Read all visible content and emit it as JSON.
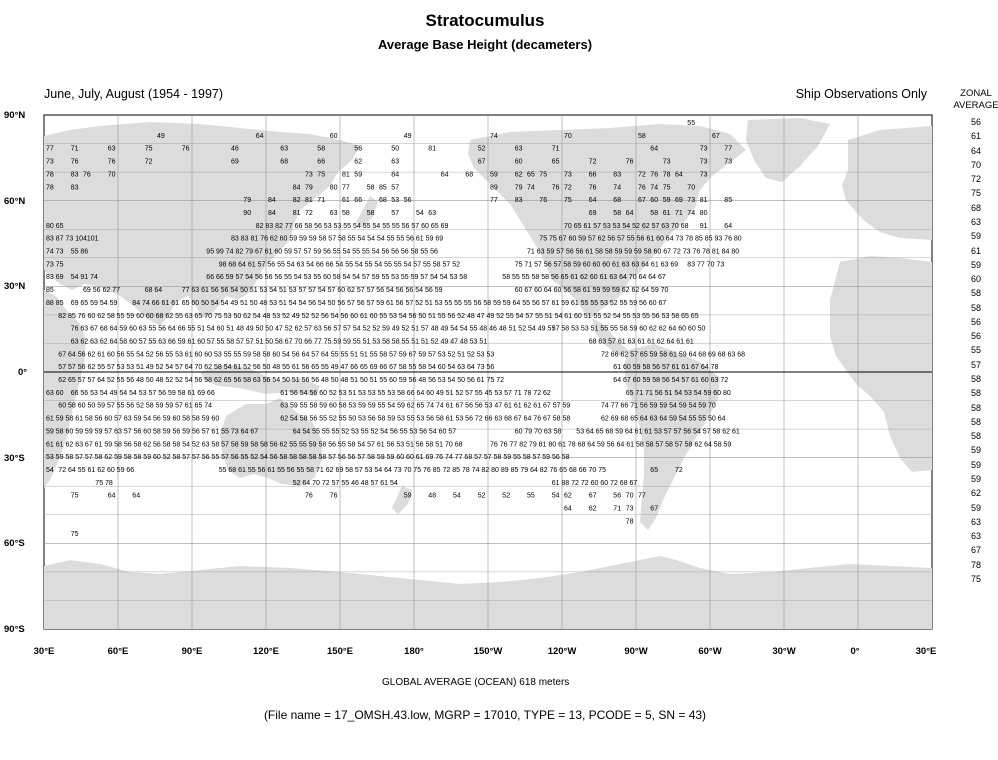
{
  "title": "Stratocumulus",
  "subtitle": "Average Base Height (decameters)",
  "period": "June, July, August (1954 - 1997)",
  "source_note": "Ship Observations Only",
  "zonal_header": "ZONAL AVERAGE",
  "zonal_values": [
    "56",
    "61",
    "64",
    "70",
    "72",
    "75",
    "68",
    "63",
    "59",
    "61",
    "59",
    "60",
    "58",
    "58",
    "56",
    "56",
    "55",
    "57",
    "58",
    "58",
    "58",
    "58",
    "58",
    "59",
    "59",
    "59",
    "62",
    "59",
    "63",
    "63",
    "67",
    "78",
    "75"
  ],
  "lat_labels": [
    "90°N",
    "60°N",
    "30°N",
    "0°",
    "30°S",
    "60°S",
    "90°S"
  ],
  "lon_labels": [
    "30°E",
    "60°E",
    "90°E",
    "120°E",
    "150°E",
    "180°",
    "150°W",
    "120°W",
    "90°W",
    "60°W",
    "30°W",
    "0°",
    "30°E"
  ],
  "global_average": "GLOBAL AVERAGE (OCEAN)   618 meters",
  "file_info": "(File name = 17_OMSH.43.low, MGRP = 17010, TYPE = 13, PCODE = 5, SN = 43)",
  "colors": {
    "land": "#dcdcdc",
    "grid": "#999999",
    "ocean": "#ffffff"
  },
  "grid_values": [
    {
      "row": 0,
      "col": 52,
      "v": "55"
    },
    {
      "row": 1,
      "col": 9,
      "v": "49"
    },
    {
      "row": 1,
      "col": 17,
      "v": "64"
    },
    {
      "row": 1,
      "col": 23,
      "v": "60"
    },
    {
      "row": 1,
      "col": 29,
      "v": "49"
    },
    {
      "row": 1,
      "col": 36,
      "v": "74"
    },
    {
      "row": 1,
      "col": 42,
      "v": "70"
    },
    {
      "row": 1,
      "col": 48,
      "v": "58"
    },
    {
      "row": 1,
      "col": 54,
      "v": "67"
    },
    {
      "row": 2,
      "col": 0,
      "v": "77"
    },
    {
      "row": 2,
      "col": 2,
      "v": "71"
    },
    {
      "row": 2,
      "col": 5,
      "v": "63"
    },
    {
      "row": 2,
      "col": 8,
      "v": "75"
    },
    {
      "row": 2,
      "col": 11,
      "v": "76"
    },
    {
      "row": 2,
      "col": 15,
      "v": "46"
    },
    {
      "row": 2,
      "col": 19,
      "v": "63"
    },
    {
      "row": 2,
      "col": 22,
      "v": "58"
    },
    {
      "row": 2,
      "col": 25,
      "v": "56"
    },
    {
      "row": 2,
      "col": 28,
      "v": "50"
    },
    {
      "row": 2,
      "col": 31,
      "v": "81"
    },
    {
      "row": 2,
      "col": 35,
      "v": "52"
    },
    {
      "row": 2,
      "col": 38,
      "v": "63"
    },
    {
      "row": 2,
      "col": 41,
      "v": "71"
    },
    {
      "row": 2,
      "col": 49,
      "v": "64"
    },
    {
      "row": 2,
      "col": 53,
      "v": "73"
    },
    {
      "row": 2,
      "col": 55,
      "v": "77"
    },
    {
      "row": 3,
      "col": 0,
      "v": "73"
    },
    {
      "row": 3,
      "col": 2,
      "v": "76"
    },
    {
      "row": 3,
      "col": 5,
      "v": "76"
    },
    {
      "row": 3,
      "col": 8,
      "v": "72"
    },
    {
      "row": 3,
      "col": 15,
      "v": "69"
    },
    {
      "row": 3,
      "col": 19,
      "v": "68"
    },
    {
      "row": 3,
      "col": 22,
      "v": "66"
    },
    {
      "row": 3,
      "col": 25,
      "v": "62"
    },
    {
      "row": 3,
      "col": 28,
      "v": "63"
    },
    {
      "row": 3,
      "col": 35,
      "v": "67"
    },
    {
      "row": 3,
      "col": 38,
      "v": "60"
    },
    {
      "row": 3,
      "col": 41,
      "v": "65"
    },
    {
      "row": 3,
      "col": 44,
      "v": "72"
    },
    {
      "row": 3,
      "col": 47,
      "v": "76"
    },
    {
      "row": 3,
      "col": 50,
      "v": "73"
    },
    {
      "row": 3,
      "col": 53,
      "v": "73"
    },
    {
      "row": 3,
      "col": 55,
      "v": "73"
    },
    {
      "row": 4,
      "col": 0,
      "v": "78"
    },
    {
      "row": 4,
      "col": 2,
      "v": "83"
    },
    {
      "row": 4,
      "col": 3,
      "v": "76"
    },
    {
      "row": 4,
      "col": 5,
      "v": "70"
    },
    {
      "row": 4,
      "col": 21,
      "v": "73"
    },
    {
      "row": 4,
      "col": 22,
      "v": "75"
    },
    {
      "row": 4,
      "col": 24,
      "v": "81"
    },
    {
      "row": 4,
      "col": 25,
      "v": "59"
    },
    {
      "row": 4,
      "col": 28,
      "v": "84"
    },
    {
      "row": 4,
      "col": 32,
      "v": "64"
    },
    {
      "row": 4,
      "col": 34,
      "v": "68"
    },
    {
      "row": 4,
      "col": 36,
      "v": "59"
    },
    {
      "row": 4,
      "col": 38,
      "v": "62"
    },
    {
      "row": 4,
      "col": 39,
      "v": "65"
    },
    {
      "row": 4,
      "col": 40,
      "v": "75"
    },
    {
      "row": 4,
      "col": 42,
      "v": "73"
    },
    {
      "row": 4,
      "col": 44,
      "v": "66"
    },
    {
      "row": 4,
      "col": 46,
      "v": "83"
    },
    {
      "row": 4,
      "col": 48,
      "v": "72"
    },
    {
      "row": 4,
      "col": 49,
      "v": "76"
    },
    {
      "row": 4,
      "col": 50,
      "v": "78"
    },
    {
      "row": 4,
      "col": 51,
      "v": "64"
    },
    {
      "row": 4,
      "col": 53,
      "v": "73"
    },
    {
      "row": 5,
      "col": 0,
      "v": "78"
    },
    {
      "row": 5,
      "col": 2,
      "v": "83"
    },
    {
      "row": 5,
      "col": 20,
      "v": "84"
    },
    {
      "row": 5,
      "col": 21,
      "v": "79"
    },
    {
      "row": 5,
      "col": 23,
      "v": "80"
    },
    {
      "row": 5,
      "col": 24,
      "v": "77"
    },
    {
      "row": 5,
      "col": 26,
      "v": "58"
    },
    {
      "row": 5,
      "col": 27,
      "v": "85"
    },
    {
      "row": 5,
      "col": 28,
      "v": "57"
    },
    {
      "row": 5,
      "col": 36,
      "v": "89"
    },
    {
      "row": 5,
      "col": 38,
      "v": "79"
    },
    {
      "row": 5,
      "col": 39,
      "v": "74"
    },
    {
      "row": 5,
      "col": 41,
      "v": "76"
    },
    {
      "row": 5,
      "col": 42,
      "v": "72"
    },
    {
      "row": 5,
      "col": 44,
      "v": "76"
    },
    {
      "row": 5,
      "col": 46,
      "v": "74"
    },
    {
      "row": 5,
      "col": 48,
      "v": "76"
    },
    {
      "row": 5,
      "col": 49,
      "v": "74"
    },
    {
      "row": 5,
      "col": 50,
      "v": "75"
    },
    {
      "row": 5,
      "col": 52,
      "v": "70"
    },
    {
      "row": 6,
      "col": 16,
      "v": "79"
    },
    {
      "row": 6,
      "col": 18,
      "v": "84"
    },
    {
      "row": 6,
      "col": 20,
      "v": "82"
    },
    {
      "row": 6,
      "col": 21,
      "v": "81"
    },
    {
      "row": 6,
      "col": 22,
      "v": "71"
    },
    {
      "row": 6,
      "col": 24,
      "v": "61"
    },
    {
      "row": 6,
      "col": 25,
      "v": "66"
    },
    {
      "row": 6,
      "col": 27,
      "v": "68"
    },
    {
      "row": 6,
      "col": 28,
      "v": "53"
    },
    {
      "row": 6,
      "col": 29,
      "v": "56"
    },
    {
      "row": 6,
      "col": 36,
      "v": "77"
    },
    {
      "row": 6,
      "col": 38,
      "v": "83"
    },
    {
      "row": 6,
      "col": 40,
      "v": "76"
    },
    {
      "row": 6,
      "col": 42,
      "v": "75"
    },
    {
      "row": 6,
      "col": 44,
      "v": "64"
    },
    {
      "row": 6,
      "col": 46,
      "v": "68"
    },
    {
      "row": 6,
      "col": 48,
      "v": "67"
    },
    {
      "row": 6,
      "col": 49,
      "v": "60"
    },
    {
      "row": 6,
      "col": 50,
      "v": "59"
    },
    {
      "row": 6,
      "col": 51,
      "v": "69"
    },
    {
      "row": 6,
      "col": 52,
      "v": "73"
    },
    {
      "row": 6,
      "col": 53,
      "v": "81"
    },
    {
      "row": 6,
      "col": 55,
      "v": "85"
    },
    {
      "row": 7,
      "col": 16,
      "v": "90"
    },
    {
      "row": 7,
      "col": 18,
      "v": "84"
    },
    {
      "row": 7,
      "col": 20,
      "v": "81"
    },
    {
      "row": 7,
      "col": 21,
      "v": "72"
    },
    {
      "row": 7,
      "col": 23,
      "v": "63"
    },
    {
      "row": 7,
      "col": 24,
      "v": "58"
    },
    {
      "row": 7,
      "col": 26,
      "v": "58"
    },
    {
      "row": 7,
      "col": 28,
      "v": "57"
    },
    {
      "row": 7,
      "col": 30,
      "v": "54"
    },
    {
      "row": 7,
      "col": 31,
      "v": "63"
    },
    {
      "row": 7,
      "col": 44,
      "v": "69"
    },
    {
      "row": 7,
      "col": 46,
      "v": "58"
    },
    {
      "row": 7,
      "col": 47,
      "v": "64"
    },
    {
      "row": 7,
      "col": 49,
      "v": "58"
    },
    {
      "row": 7,
      "col": 50,
      "v": "61"
    },
    {
      "row": 7,
      "col": 51,
      "v": "71"
    },
    {
      "row": 7,
      "col": 52,
      "v": "74"
    },
    {
      "row": 7,
      "col": 53,
      "v": "80"
    },
    {
      "row": 8,
      "col": 0,
      "v": "80 65"
    },
    {
      "row": 8,
      "col": 17,
      "v": "82 83 82 77 66 58 56 53 53 55 54 55 54 55 55 56 57 60 65 69"
    },
    {
      "row": 8,
      "col": 42,
      "v": "70 65 61 57 53 53 54 52 62 57 63 70 68"
    },
    {
      "row": 8,
      "col": 53,
      "v": "91"
    },
    {
      "row": 8,
      "col": 55,
      "v": "64"
    },
    {
      "row": 9,
      "col": 0,
      "v": "83 87 73 104101"
    },
    {
      "row": 9,
      "col": 15,
      "v": "83 83 81 76 62 60 59 59 59 58 57 58 55 54 54 54 55 55 56 61 59 69"
    },
    {
      "row": 9,
      "col": 40,
      "v": "75 75 67 60 59 57 62 56 57 55 56 61 60 64 73 78 85 85 93 76 80"
    },
    {
      "row": 10,
      "col": 0,
      "v": "74 73"
    },
    {
      "row": 10,
      "col": 2,
      "v": "55 86"
    },
    {
      "row": 10,
      "col": 13,
      "v": "95 99 74 82 79 67 61 60 59 57 57 59 56 55 54 55 55 54 56 56 56 58 55 56"
    },
    {
      "row": 10,
      "col": 39,
      "v": "71 63 59 57 56 56 61 58 58 59 59 59 58 60 67 72 73 76 78 81 84 80"
    },
    {
      "row": 11,
      "col": 0,
      "v": "73 75"
    },
    {
      "row": 11,
      "col": 14,
      "v": "98 68 64 61 57 56 55 54 63 54 66 66 54 55 54 55 54 55 55 54 57 55 58 57 52"
    },
    {
      "row": 11,
      "col": 38,
      "v": "75 71 57 56 57 58 59 60 60 60 61 63 63 64 61 63 69"
    },
    {
      "row": 11,
      "col": 52,
      "v": "83 77 70 73"
    },
    {
      "row": 12,
      "col": 0,
      "v": "83 69"
    },
    {
      "row": 12,
      "col": 2,
      "v": "54 91 74"
    },
    {
      "row": 12,
      "col": 13,
      "v": "66 66 59 57 54 56 56 56 55 54 53 55 60 58 54 54 57 59 55 53 55 59 57 54 54 53 58"
    },
    {
      "row": 12,
      "col": 37,
      "v": "58 55 55 58 58 56 65 61 62 60 61 63 64 70 64 64 67"
    },
    {
      "row": 13,
      "col": 0,
      "v": "85"
    },
    {
      "row": 13,
      "col": 3,
      "v": "69 56 62 77"
    },
    {
      "row": 13,
      "col": 8,
      "v": "68 64"
    },
    {
      "row": 13,
      "col": 11,
      "v": "77 63 61 56 56 54 50 51 53 54 51 53 57 57 54 57 60 62 57 57 56 54 56 56 54 56 59"
    },
    {
      "row": 13,
      "col": 38,
      "v": "60 67 60 64 60 56 58 61 59 59 59 62 62 64 59 70"
    },
    {
      "row": 14,
      "col": 0,
      "v": "88 85"
    },
    {
      "row": 14,
      "col": 2,
      "v": "69 65 59 54 59"
    },
    {
      "row": 14,
      "col": 7,
      "v": "84 74 66 61 61"
    },
    {
      "row": 14,
      "col": 11,
      "v": "65 60 50 54 54 49 51 50 48 53 51 54 54 56 54 50 56 57 56 57 59 61 56 57 52 51 53 55 55 55 56 58 59 59 64 55 56 57 61 59 61 55 55 53 52 55 59 56 60 67"
    },
    {
      "row": 15,
      "col": 1,
      "v": "82 85 76 60 62 58 55 59 60 60 68 62 55 63 65 70 75 53 50 62 54 48 53 52 49 52 52 56 54 56 60 61 60 55 53 54 56 50 51 55 56 52 48 47 49 52 55 54 57 55 51 54 61 60 51 55 52 54 55 53 55 56 53 58 65 65"
    },
    {
      "row": 16,
      "col": 2,
      "v": "76 63 67 68 64 59 60 63 55 56 64 66 55 51 54 60 51 48 49 50 50 47 52 62 57 63 56 57 57 54 52 52 59 49 52 51 57 48 49 54 54 55 48 46 48 51 52 54 49 57"
    },
    {
      "row": 16,
      "col": 41,
      "v": "57 58 53 53 51 55 55 58 59 60 62 62 64 60 60 50"
    },
    {
      "row": 17,
      "col": 2,
      "v": "63 62 63 62 64 58 60 57 55 63 66 59 61 60 57 55 58 57 57 51 50 58 67 70 66 77 75 59 59 55 51 53 58 58 55 51 51 52 49 47 48 53 51"
    },
    {
      "row": 17,
      "col": 44,
      "v": "68 63 57 61 63 61 61 62 64 61 61"
    },
    {
      "row": 18,
      "col": 1,
      "v": "67 64 56 62 61 60 56 55 54 52 56 55 53 61 60 60 53 55 55 59 58 58 60 54 56 64 57 64 55 55 51 51 55 58 57 59 67 59 57 53 52 51 52 53 53"
    },
    {
      "row": 18,
      "col": 45,
      "v": "72 66 62 57 65 59 58 61 59 64 68 69 68 63 68"
    },
    {
      "row": 19,
      "col": 1,
      "v": "57 57 56 62 55 57 53 53 51 49 52 54 57 64 70 62 58 54 61 52 56 50 48 55 61 56 65 55 49 47 66 65 69 66 67 58 55 58 54 60 54 63 64 73 56"
    },
    {
      "row": 19,
      "col": 46,
      "v": "61 60 59 58 56 57 61 61 67 64 78"
    },
    {
      "row": 20,
      "col": 1,
      "v": "62 65 57 57 64 52 55 56 48 50 48 52 52 54 56 58 62 65 56 58 63 56 54 50 51 56 56 48 50 48 51 50 51 55 60 59 56 48 56 53 54 50 56 61 75 72"
    },
    {
      "row": 20,
      "col": 46,
      "v": "64 67 60 59 58 56 54 57 61 60 63 72"
    },
    {
      "row": 21,
      "col": 0,
      "v": "63 60"
    },
    {
      "row": 21,
      "col": 2,
      "v": "66 56 53 54 49 54 54 53 57 56 59 58 61 69 66"
    },
    {
      "row": 21,
      "col": 19,
      "v": "61 56 54 56 60 52 53 51 53 53 55 53 58 66 64 60 49 51 52 57 55 45 53 57 71 78 72 62"
    },
    {
      "row": 21,
      "col": 47,
      "v": "65 71 71 56 51 54 53 54 59 60 80"
    },
    {
      "row": 22,
      "col": 1,
      "v": "60 58 60 50 59 57 55 56 52 58 59 59 57 61 65 74"
    },
    {
      "row": 22,
      "col": 19,
      "v": "63 59 55 58 59 60 58 53 59 59 55 54 59 62 65 74 74 61 67 56 56 53 47 61 61 62 61 67 57 59"
    },
    {
      "row": 22,
      "col": 45,
      "v": "74 77 66 71 56 59 59 54 59 54 59 70"
    },
    {
      "row": 23,
      "col": 0,
      "v": "61 59 58 61 58 56 60 57 63 59 54 56 59 60 58 58 59 60"
    },
    {
      "row": 23,
      "col": 19,
      "v": "62 54 58 56 55 52 55 50 53 56 58 59 53 55 53 56 58 61 53 56 72 66 63 68 67 64 76 67 58 58"
    },
    {
      "row": 23,
      "col": 45,
      "v": "62 69 68 65 64 63 64 59 54 55 55 50 64"
    },
    {
      "row": 24,
      "col": 0,
      "v": "59 58 60 59 59 59 57 63 57 56 60 58 59 56 59 56 57 61 55 73 64 67"
    },
    {
      "row": 24,
      "col": 20,
      "v": "64 54 55 55 55 52 53 55 52 54 56 55 53 56 54 60 57"
    },
    {
      "row": 24,
      "col": 38,
      "v": "60 79 70 63 58"
    },
    {
      "row": 24,
      "col": 43,
      "v": "53 64 65 68 59 64 61 61 53 57 57 56 54 57 58 62 61"
    },
    {
      "row": 25,
      "col": 0,
      "v": "61 61 62 63 67 61 59 58 56 58 62 56 58 58 54 52 63 58 57 58 59 58 58 56 62 55 55 59 58 56 55 58 54 57 61 56 53 51 56 58 51 70 68"
    },
    {
      "row": 25,
      "col": 36,
      "v": "76 76 77 82 79 81 80 61 78 68 64 59 56 64 61 58 58 57 58 57 58 62 64 58 59"
    },
    {
      "row": 26,
      "col": 0,
      "v": "53 59 58 57 57 58 62 59 58 58 59 60 52 58 57 57 56 55 57 56 55 52 54 56 58 58 58 58 58 57 56 56 57 58 59 59 60 60 61 69 76 74 77 68 57 57 58 59 55 58 57 59 56 58"
    },
    {
      "row": 27,
      "col": 0,
      "v": "54"
    },
    {
      "row": 27,
      "col": 1,
      "v": "72 64 55 61 62 60 59 66"
    },
    {
      "row": 27,
      "col": 14,
      "v": "55 68 61 55 56 61 55 56 55 58 71 62 69 58 57 53 54 64 73 70 75 76 85 72 85 78 74 82 80 89 85 79 64 82 76 65 68 66 70 75"
    },
    {
      "row": 27,
      "col": 49,
      "v": "65"
    },
    {
      "row": 27,
      "col": 51,
      "v": "72"
    },
    {
      "row": 28,
      "col": 4,
      "v": "75 78"
    },
    {
      "row": 28,
      "col": 20,
      "v": "52 64 70 72 57 55 46 48 57 61 54"
    },
    {
      "row": 28,
      "col": 41,
      "v": "61 88 72 72 60 60 72 68 67"
    },
    {
      "row": 29,
      "col": 2,
      "v": "75"
    },
    {
      "row": 29,
      "col": 5,
      "v": "64"
    },
    {
      "row": 29,
      "col": 7,
      "v": "64"
    },
    {
      "row": 29,
      "col": 21,
      "v": "76"
    },
    {
      "row": 29,
      "col": 23,
      "v": "76"
    },
    {
      "row": 29,
      "col": 29,
      "v": "59"
    },
    {
      "row": 29,
      "col": 31,
      "v": "48"
    },
    {
      "row": 29,
      "col": 33,
      "v": "54"
    },
    {
      "row": 29,
      "col": 35,
      "v": "52"
    },
    {
      "row": 29,
      "col": 37,
      "v": "52"
    },
    {
      "row": 29,
      "col": 39,
      "v": "55"
    },
    {
      "row": 29,
      "col": 41,
      "v": "54"
    },
    {
      "row": 29,
      "col": 42,
      "v": "62"
    },
    {
      "row": 29,
      "col": 44,
      "v": "67"
    },
    {
      "row": 29,
      "col": 46,
      "v": "56"
    },
    {
      "row": 29,
      "col": 47,
      "v": "70"
    },
    {
      "row": 29,
      "col": 48,
      "v": "77"
    },
    {
      "row": 30,
      "col": 42,
      "v": "64"
    },
    {
      "row": 30,
      "col": 44,
      "v": "62"
    },
    {
      "row": 30,
      "col": 46,
      "v": "71"
    },
    {
      "row": 30,
      "col": 47,
      "v": "73"
    },
    {
      "row": 30,
      "col": 49,
      "v": "67"
    },
    {
      "row": 31,
      "col": 47,
      "v": "78"
    },
    {
      "row": 32,
      "col": 2,
      "v": "75"
    }
  ]
}
